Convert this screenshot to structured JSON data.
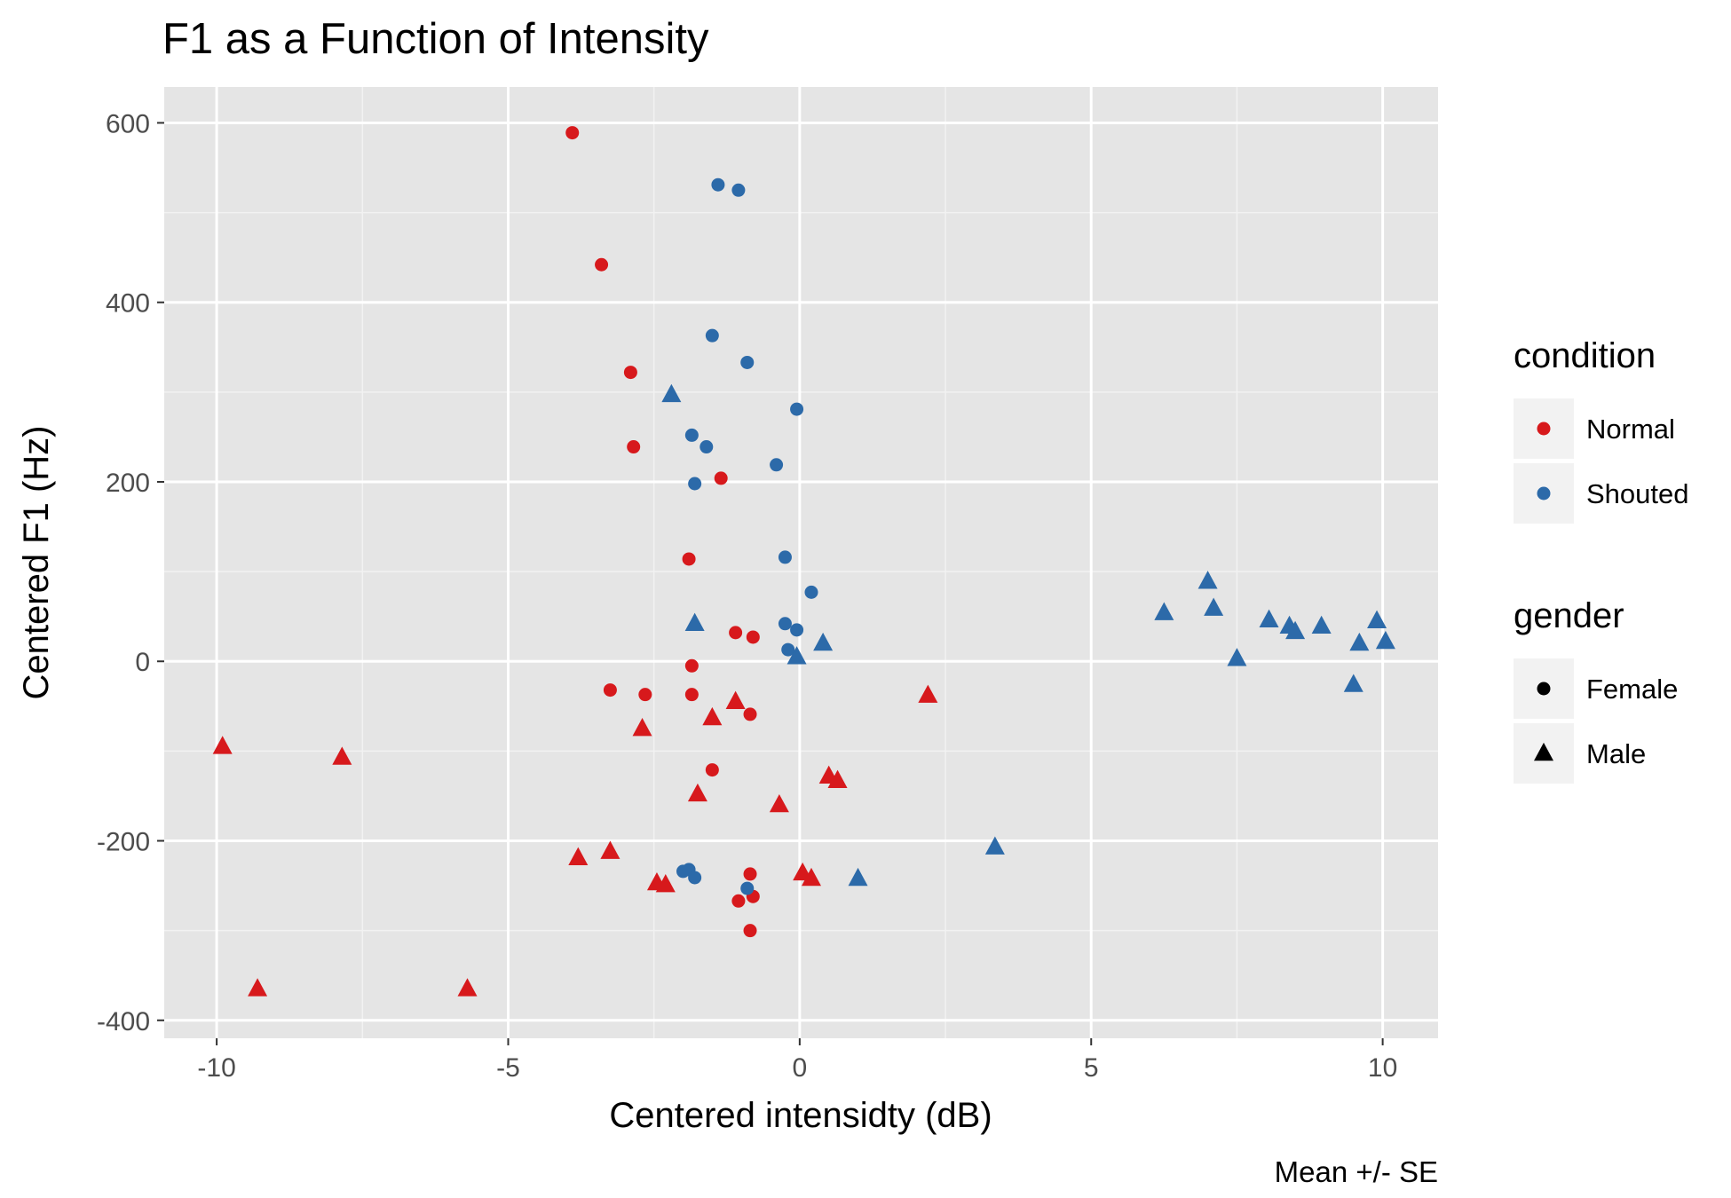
{
  "chart_data": {
    "type": "scatter",
    "title": "F1 as a Function of Intensity",
    "xlabel": "Centered intensidty (dB)",
    "ylabel": "Centered F1 (Hz)",
    "caption": "Mean +/- SE",
    "xlim": [
      -10.9,
      10.95
    ],
    "ylim": [
      -420,
      640
    ],
    "x_ticks": [
      -10,
      -5,
      0,
      5,
      10
    ],
    "x_tick_labels": [
      "-10",
      "-5",
      "0",
      "5",
      "10"
    ],
    "y_ticks": [
      -400,
      -200,
      0,
      200,
      400,
      600
    ],
    "y_tick_labels": [
      "-400",
      "-200",
      "0",
      "200",
      "400",
      "600"
    ],
    "grid": true,
    "legend_position": "right",
    "colors": {
      "Normal": "#d7191c",
      "Shouted": "#2c6aa9"
    },
    "panel_background": "#e5e5e5",
    "legends": [
      {
        "title": "condition",
        "entries": [
          {
            "label": "Normal",
            "shape": "circle",
            "color": "#d7191c"
          },
          {
            "label": "Shouted",
            "shape": "circle",
            "color": "#2c6aa9"
          }
        ]
      },
      {
        "title": "gender",
        "entries": [
          {
            "label": "Female",
            "shape": "circle",
            "color": "#000000"
          },
          {
            "label": "Male",
            "shape": "triangle",
            "color": "#000000"
          }
        ]
      }
    ],
    "series": [
      {
        "condition": "Normal",
        "gender": "Female",
        "shape": "circle",
        "color": "#d7191c",
        "points": [
          [
            -3.9,
            589
          ],
          [
            -3.4,
            442
          ],
          [
            -2.9,
            322
          ],
          [
            -2.85,
            239
          ],
          [
            -1.35,
            204
          ],
          [
            -1.9,
            114
          ],
          [
            -1.1,
            32
          ],
          [
            -0.8,
            27
          ],
          [
            -1.85,
            -5
          ],
          [
            -3.25,
            -32
          ],
          [
            -2.65,
            -37
          ],
          [
            -1.85,
            -37
          ],
          [
            -0.85,
            -59
          ],
          [
            -1.5,
            -121
          ],
          [
            -0.85,
            -237
          ],
          [
            -1.05,
            -267
          ],
          [
            -0.8,
            -262
          ],
          [
            -0.85,
            -300
          ]
        ]
      },
      {
        "condition": "Shouted",
        "gender": "Female",
        "shape": "circle",
        "color": "#2c6aa9",
        "points": [
          [
            -1.4,
            531
          ],
          [
            -1.05,
            525
          ],
          [
            -1.5,
            363
          ],
          [
            -0.9,
            333
          ],
          [
            -0.05,
            281
          ],
          [
            -1.85,
            252
          ],
          [
            -1.6,
            239
          ],
          [
            -0.4,
            219
          ],
          [
            -1.8,
            198
          ],
          [
            -0.25,
            116
          ],
          [
            0.2,
            77
          ],
          [
            -0.25,
            42
          ],
          [
            -0.05,
            35
          ],
          [
            -0.2,
            13
          ],
          [
            -2.0,
            -234
          ],
          [
            -1.9,
            -232
          ],
          [
            -1.8,
            -241
          ],
          [
            -0.9,
            -253
          ]
        ]
      },
      {
        "condition": "Normal",
        "gender": "Male",
        "shape": "triangle",
        "color": "#d7191c",
        "points": [
          [
            -9.9,
            -95
          ],
          [
            -7.85,
            -107
          ],
          [
            -1.1,
            -45
          ],
          [
            -1.5,
            -63
          ],
          [
            -2.7,
            -75
          ],
          [
            2.2,
            -38
          ],
          [
            -1.75,
            -148
          ],
          [
            -0.35,
            -160
          ],
          [
            0.5,
            -128
          ],
          [
            0.65,
            -133
          ],
          [
            -3.8,
            -219
          ],
          [
            -3.25,
            -212
          ],
          [
            -2.45,
            -247
          ],
          [
            -2.3,
            -249
          ],
          [
            0.05,
            -236
          ],
          [
            0.2,
            -242
          ],
          [
            -9.3,
            -365
          ],
          [
            -5.7,
            -365
          ]
        ]
      },
      {
        "condition": "Shouted",
        "gender": "Male",
        "shape": "triangle",
        "color": "#2c6aa9",
        "points": [
          [
            -2.2,
            297
          ],
          [
            -1.8,
            42
          ],
          [
            0.4,
            20
          ],
          [
            -0.05,
            5
          ],
          [
            3.35,
            -207
          ],
          [
            1.0,
            -242
          ],
          [
            6.25,
            54
          ],
          [
            7.0,
            89
          ],
          [
            7.1,
            59
          ],
          [
            7.5,
            3
          ],
          [
            8.05,
            46
          ],
          [
            8.4,
            39
          ],
          [
            8.5,
            33
          ],
          [
            8.95,
            39
          ],
          [
            9.5,
            -26
          ],
          [
            9.6,
            20
          ],
          [
            9.9,
            45
          ],
          [
            10.05,
            22
          ]
        ]
      }
    ]
  }
}
